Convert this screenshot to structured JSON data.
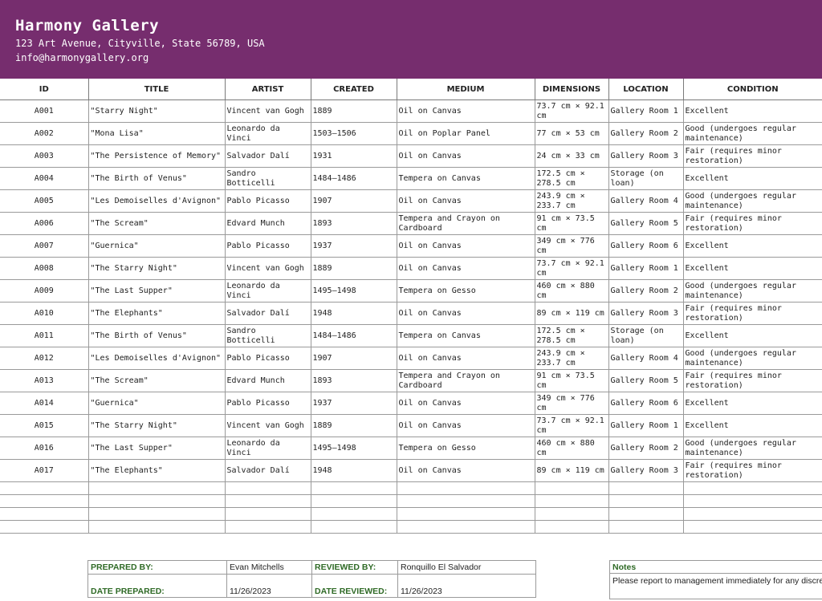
{
  "gallery": {
    "name": "Harmony Gallery",
    "address": "123 Art Avenue, Cityville, State 56789, USA",
    "email": "info@harmonygallery.org"
  },
  "colors": {
    "header_bg": "#762d6e",
    "label_green": "#2f6a26"
  },
  "table": {
    "headers": [
      "ID",
      "TITLE",
      "ARTIST",
      "CREATED",
      "MEDIUM",
      "DIMENSIONS",
      "LOCATION",
      "CONDITION"
    ],
    "rows": [
      [
        "A001",
        "\"Starry Night\"",
        "Vincent van Gogh",
        "1889",
        "Oil on Canvas",
        "73.7 cm × 92.1 cm",
        "Gallery Room 1",
        "Excellent"
      ],
      [
        "A002",
        "\"Mona Lisa\"",
        "Leonardo da Vinci",
        "1503–1506",
        "Oil on Poplar Panel",
        "77 cm × 53 cm",
        "Gallery Room 2",
        "Good (undergoes regular maintenance)"
      ],
      [
        "A003",
        "\"The Persistence of Memory\"",
        "Salvador Dalí",
        "1931",
        "Oil on Canvas",
        "24 cm × 33 cm",
        "Gallery Room 3",
        "Fair (requires minor restoration)"
      ],
      [
        "A004",
        "\"The Birth of Venus\"",
        "Sandro Botticelli",
        "1484–1486",
        "Tempera on Canvas",
        "172.5 cm × 278.5 cm",
        "Storage (on loan)",
        "Excellent"
      ],
      [
        "A005",
        "\"Les Demoiselles d'Avignon\"",
        "Pablo Picasso",
        "1907",
        "Oil on Canvas",
        "243.9 cm × 233.7 cm",
        "Gallery Room 4",
        "Good (undergoes regular maintenance)"
      ],
      [
        "A006",
        "\"The Scream\"",
        "Edvard Munch",
        "1893",
        "Tempera and Crayon on Cardboard",
        "91 cm × 73.5 cm",
        "Gallery Room 5",
        "Fair (requires minor restoration)"
      ],
      [
        "A007",
        "\"Guernica\"",
        "Pablo Picasso",
        "1937",
        "Oil on Canvas",
        "349 cm × 776 cm",
        "Gallery Room 6",
        "Excellent"
      ],
      [
        "A008",
        "\"The Starry Night\"",
        "Vincent van Gogh",
        "1889",
        "Oil on Canvas",
        "73.7 cm × 92.1 cm",
        "Gallery Room 1",
        "Excellent"
      ],
      [
        "A009",
        "\"The Last Supper\"",
        "Leonardo da Vinci",
        "1495–1498",
        "Tempera on Gesso",
        "460 cm × 880 cm",
        "Gallery Room 2",
        "Good (undergoes regular maintenance)"
      ],
      [
        "A010",
        "\"The Elephants\"",
        "Salvador Dalí",
        "1948",
        "Oil on Canvas",
        "89 cm × 119 cm",
        "Gallery Room 3",
        "Fair (requires minor restoration)"
      ],
      [
        "A011",
        "\"The Birth of Venus\"",
        "Sandro Botticelli",
        "1484–1486",
        "Tempera on Canvas",
        "172.5 cm × 278.5 cm",
        "Storage (on loan)",
        "Excellent"
      ],
      [
        "A012",
        "\"Les Demoiselles d'Avignon\"",
        "Pablo Picasso",
        "1907",
        "Oil on Canvas",
        "243.9 cm × 233.7 cm",
        "Gallery Room 4",
        "Good (undergoes regular maintenance)"
      ],
      [
        "A013",
        "\"The Scream\"",
        "Edvard Munch",
        "1893",
        "Tempera and Crayon on Cardboard",
        "91 cm × 73.5 cm",
        "Gallery Room 5",
        "Fair (requires minor restoration)"
      ],
      [
        "A014",
        "\"Guernica\"",
        "Pablo Picasso",
        "1937",
        "Oil on Canvas",
        "349 cm × 776 cm",
        "Gallery Room 6",
        "Excellent"
      ],
      [
        "A015",
        "\"The Starry Night\"",
        "Vincent van Gogh",
        "1889",
        "Oil on Canvas",
        "73.7 cm × 92.1 cm",
        "Gallery Room 1",
        "Excellent"
      ],
      [
        "A016",
        "\"The Last Supper\"",
        "Leonardo da Vinci",
        "1495–1498",
        "Tempera on Gesso",
        "460 cm × 880 cm",
        "Gallery Room 2",
        "Good (undergoes regular maintenance)"
      ],
      [
        "A017",
        "\"The Elephants\"",
        "Salvador Dalí",
        "1948",
        "Oil on Canvas",
        "89 cm × 119 cm",
        "Gallery Room 3",
        "Fair (requires minor restoration)"
      ]
    ]
  },
  "footer": {
    "prepared_by_label": "PREPARED BY:",
    "prepared_by": "Evan Mitchells",
    "reviewed_by_label": "REVIEWED BY:",
    "reviewed_by": "Ronquillo El Salvador",
    "date_prepared_label": "DATE PREPARED:",
    "date_prepared": "11/26/2023",
    "date_reviewed_label": "DATE REVIEWED:",
    "date_reviewed": "11/26/2023",
    "notes_label": "Notes",
    "notes_text": "Please report to management immediately for any discrepancies found in the inventory."
  }
}
